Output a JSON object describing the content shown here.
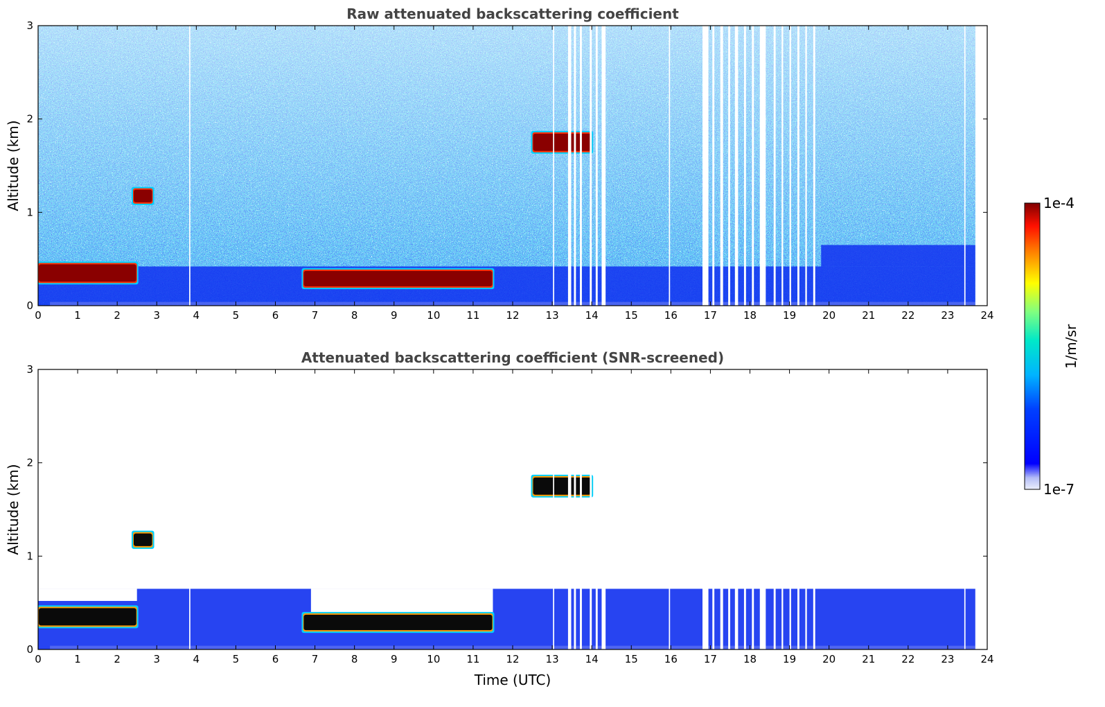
{
  "chart_data": [
    {
      "type": "heatmap",
      "title": "Raw attenuated backscattering coefficient",
      "xlabel": "",
      "ylabel": "Altitude (km)",
      "xlim": [
        0,
        24
      ],
      "ylim": [
        0,
        3
      ],
      "xticks": [
        "0",
        "1",
        "2",
        "3",
        "4",
        "5",
        "6",
        "7",
        "8",
        "9",
        "10",
        "11",
        "12",
        "13",
        "14",
        "15",
        "16",
        "17",
        "18",
        "19",
        "20",
        "21",
        "22",
        "23",
        "24"
      ],
      "yticks": [
        "0",
        "1",
        "2",
        "3"
      ],
      "grid": false,
      "features": [
        {
          "label": "boundary layer aerosol",
          "x": [
            0.0,
            2.5
          ],
          "y": [
            0.25,
            0.45
          ],
          "level": "high"
        },
        {
          "label": "boundary layer aerosol",
          "x": [
            6.7,
            11.5
          ],
          "y": [
            0.2,
            0.38
          ],
          "level": "high"
        },
        {
          "label": "cloud",
          "x": [
            2.4,
            2.9
          ],
          "y": [
            1.1,
            1.25
          ],
          "level": "high"
        },
        {
          "label": "cloud",
          "x": [
            12.5,
            14.0
          ],
          "y": [
            1.65,
            1.85
          ],
          "level": "high"
        },
        {
          "label": "data gaps",
          "x": [
            13.4,
            14.4
          ],
          "y": [
            0,
            3
          ]
        },
        {
          "label": "data gaps",
          "x": [
            16.8,
            19.8
          ],
          "y": [
            0,
            3
          ]
        }
      ]
    },
    {
      "type": "heatmap",
      "title": "Attenuated backscattering coefficient (SNR-screened)",
      "xlabel": "Time (UTC)",
      "ylabel": "Altitude (km)",
      "xlim": [
        0,
        24
      ],
      "ylim": [
        0,
        3
      ],
      "xticks": [
        "0",
        "1",
        "2",
        "3",
        "4",
        "5",
        "6",
        "7",
        "8",
        "9",
        "10",
        "11",
        "12",
        "13",
        "14",
        "15",
        "16",
        "17",
        "18",
        "19",
        "20",
        "21",
        "22",
        "23",
        "24"
      ],
      "yticks": [
        "0",
        "1",
        "2",
        "3"
      ],
      "grid": false,
      "features": [
        {
          "label": "boundary layer aerosol",
          "x": [
            0.0,
            2.5
          ],
          "y": [
            0.25,
            0.45
          ],
          "level": "saturated"
        },
        {
          "label": "boundary layer aerosol",
          "x": [
            6.7,
            11.5
          ],
          "y": [
            0.2,
            0.38
          ],
          "level": "saturated"
        },
        {
          "label": "cloud",
          "x": [
            2.4,
            2.9
          ],
          "y": [
            1.1,
            1.25
          ],
          "level": "saturated"
        },
        {
          "label": "cloud",
          "x": [
            12.5,
            14.0
          ],
          "y": [
            1.65,
            1.85
          ],
          "level": "saturated"
        }
      ]
    }
  ],
  "colorbar": {
    "label": "1/m/sr",
    "max_label": "1e-4",
    "min_label": "1e-7",
    "scale": "log",
    "colormap": "jet"
  }
}
